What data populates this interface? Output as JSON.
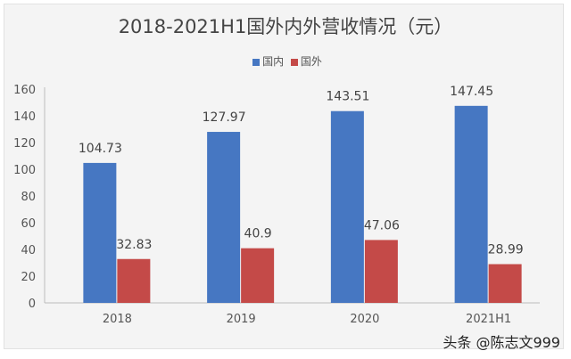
{
  "chart_data": {
    "type": "bar",
    "title": "2018-2021H1国外内外营收情况（元）",
    "categories": [
      "2018",
      "2019",
      "2020",
      "2021H1"
    ],
    "series": [
      {
        "name": "国内",
        "color": "#4677c2",
        "values": [
          104.73,
          127.97,
          143.51,
          147.45
        ],
        "labels": [
          "104.73",
          "127.97",
          "143.51",
          "147.45"
        ]
      },
      {
        "name": "国外",
        "color": "#c44a48",
        "values": [
          32.83,
          40.9,
          47.06,
          28.99
        ],
        "labels": [
          "32.83",
          "40.9",
          "47.06",
          "28.99"
        ]
      }
    ],
    "ylim": [
      0,
      160
    ],
    "yticks": [
      "0",
      "20",
      "40",
      "60",
      "80",
      "100",
      "120",
      "140",
      "160"
    ],
    "grid": false,
    "legend": "top-center"
  },
  "watermark": "头条 @陈志文999"
}
